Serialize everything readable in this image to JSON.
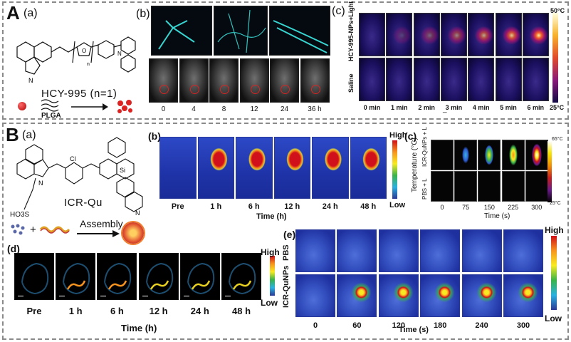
{
  "panelA": {
    "letter": "A",
    "sub_a": "(a)",
    "sub_b": "(b)",
    "sub_c": "(c)",
    "molecule_label": "HCY-995 (n=1)",
    "polymer_label": "PLGA",
    "b_times": [
      "0",
      "4",
      "8",
      "12",
      "24",
      "36 h"
    ],
    "c_rows": [
      "HCY-995-NPs+Light",
      "Saline"
    ],
    "c_times": [
      "0 min",
      "1 min",
      "2 min",
      "3 min",
      "4 min",
      "5 min",
      "6 min"
    ],
    "c_scale_max": "50°C",
    "c_scale_min": "25°C",
    "c_dash": "_"
  },
  "panelB": {
    "letter": "B",
    "sub_a": "(a)",
    "sub_b": "(b)",
    "sub_c": "(c)",
    "sub_d": "(d)",
    "sub_e": "(e)",
    "molecule_label": "ICR-Qu",
    "atom_cl": "Cl",
    "atom_si": "Si",
    "atom_n": "N",
    "sulfonate": "HO3S",
    "assembly_label": "Assembly",
    "b_times": [
      "Pre",
      "1 h",
      "6 h",
      "12 h",
      "24 h",
      "48 h"
    ],
    "b_axis": "Time (h)",
    "b_high": "High",
    "b_low": "Low",
    "c_rows": [
      "ICR-QuNPs + L",
      "PBS + L"
    ],
    "c_ylabel": "Temperature (°C)",
    "c_times": [
      "0",
      "75",
      "150",
      "225",
      "300"
    ],
    "c_axis": "Time (s)",
    "c_scale_max": "65°C",
    "c_scale_min": "25°C",
    "d_times": [
      "Pre",
      "1 h",
      "6 h",
      "12 h",
      "24 h",
      "48 h"
    ],
    "d_axis": "Time (h)",
    "d_high": "High",
    "d_low": "Low",
    "e_rows": [
      "PBS",
      "ICR-QuNPs"
    ],
    "e_times": [
      "0",
      "60",
      "120",
      "180",
      "240",
      "300"
    ],
    "e_axis": "Time (s)",
    "e_high": "High",
    "e_low": "Low"
  },
  "colors": {
    "frame": "#8a8a8a",
    "thermal_bg": "#1b2fb0",
    "accent_red": "#d01c1c"
  }
}
